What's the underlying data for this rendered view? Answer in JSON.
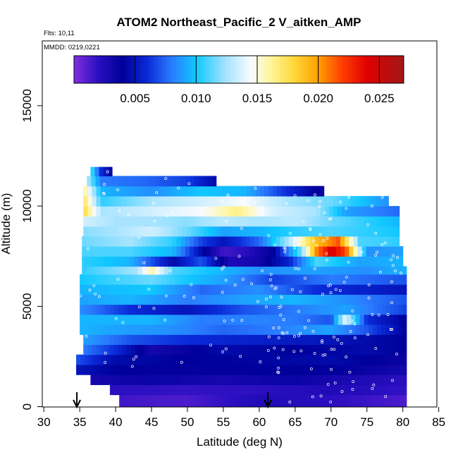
{
  "chart_data": {
    "type": "heatmap",
    "title": "ATOM2 Northeast_Pacific_2 V_aitken_AMP",
    "notes": [
      "Flts: 10,11",
      "MMDD: 0219,0221"
    ],
    "xlabel": "Latitude (deg N)",
    "ylabel": "Altitude (m)",
    "xlim": [
      30,
      85
    ],
    "ylim": [
      0,
      18000
    ],
    "x_ticks": [
      30,
      35,
      40,
      45,
      50,
      55,
      60,
      65,
      70,
      75,
      80,
      85
    ],
    "y_ticks": [
      0,
      5000,
      10000,
      15000
    ],
    "colorbar": {
      "range": [
        0,
        0.027
      ],
      "ticks": [
        0.005,
        0.01,
        0.015,
        0.02,
        0.025
      ],
      "tick_labels": [
        "0.005",
        "0.010",
        "0.015",
        "0.020",
        "0.025"
      ],
      "stops": [
        {
          "v": 0.0,
          "c": "#7f2fe0"
        },
        {
          "v": 0.002,
          "c": "#2a0fc0"
        },
        {
          "v": 0.004,
          "c": "#00009a"
        },
        {
          "v": 0.006,
          "c": "#0a2ad8"
        },
        {
          "v": 0.008,
          "c": "#2a7cff"
        },
        {
          "v": 0.01,
          "c": "#10c8ff"
        },
        {
          "v": 0.0125,
          "c": "#a9e4ff"
        },
        {
          "v": 0.0145,
          "c": "#f8fbff"
        },
        {
          "v": 0.016,
          "c": "#fff6a0"
        },
        {
          "v": 0.018,
          "c": "#ffd83a"
        },
        {
          "v": 0.02,
          "c": "#ffa000"
        },
        {
          "v": 0.022,
          "c": "#ff3c00"
        },
        {
          "v": 0.024,
          "c": "#e00000"
        },
        {
          "v": 0.027,
          "c": "#a01818"
        }
      ]
    },
    "altitude_bands": [
      {
        "alt": [
          0,
          600
        ],
        "lat": [
          40.5,
          80.5
        ],
        "profile": [
          [
            40.5,
            0.0015
          ],
          [
            50,
            0.0012
          ],
          [
            60,
            0.0025
          ],
          [
            70,
            0.002
          ],
          [
            80.5,
            0.0012
          ]
        ]
      },
      {
        "alt": [
          600,
          1100
        ],
        "lat": [
          39.2,
          80.5
        ],
        "profile": [
          [
            39.2,
            0.002
          ],
          [
            50,
            0.0018
          ],
          [
            60,
            0.002
          ],
          [
            70,
            0.0025
          ],
          [
            80.5,
            0.0018
          ]
        ]
      },
      {
        "alt": [
          1100,
          1600
        ],
        "lat": [
          36.5,
          80.5
        ],
        "profile": [
          [
            36.5,
            0.003
          ],
          [
            45,
            0.0035
          ],
          [
            55,
            0.003
          ],
          [
            65,
            0.0035
          ],
          [
            80.5,
            0.002
          ]
        ]
      },
      {
        "alt": [
          1600,
          2100
        ],
        "lat": [
          34.5,
          80.5
        ],
        "profile": [
          [
            34.5,
            0.005
          ],
          [
            40,
            0.004
          ],
          [
            50,
            0.0038
          ],
          [
            60,
            0.004
          ],
          [
            70,
            0.004
          ],
          [
            80.5,
            0.003
          ]
        ]
      },
      {
        "alt": [
          2100,
          2600
        ],
        "lat": [
          34.5,
          80.5
        ],
        "profile": [
          [
            34.5,
            0.007
          ],
          [
            40,
            0.0045
          ],
          [
            50,
            0.004
          ],
          [
            60,
            0.0042
          ],
          [
            70,
            0.0045
          ],
          [
            80.5,
            0.0035
          ]
        ]
      },
      {
        "alt": [
          2600,
          3100
        ],
        "lat": [
          35.5,
          80.5
        ],
        "profile": [
          [
            35.5,
            0.008
          ],
          [
            40,
            0.006
          ],
          [
            45,
            0.003
          ],
          [
            55,
            0.0045
          ],
          [
            65,
            0.004
          ],
          [
            75,
            0.0045
          ],
          [
            80.5,
            0.004
          ]
        ]
      },
      {
        "alt": [
          3100,
          3600
        ],
        "lat": [
          35.5,
          80.5
        ],
        "profile": [
          [
            35.5,
            0.009
          ],
          [
            42,
            0.007
          ],
          [
            50,
            0.006
          ],
          [
            60,
            0.0055
          ],
          [
            70,
            0.005
          ],
          [
            80.5,
            0.004
          ]
        ]
      },
      {
        "alt": [
          3600,
          4100
        ],
        "lat": [
          35.0,
          80.5
        ],
        "profile": [
          [
            35,
            0.0095
          ],
          [
            40,
            0.009
          ],
          [
            48,
            0.0085
          ],
          [
            55,
            0.0075
          ],
          [
            62,
            0.008
          ],
          [
            70,
            0.009
          ],
          [
            75,
            0.007
          ],
          [
            80.5,
            0.004
          ]
        ]
      },
      {
        "alt": [
          4100,
          4600
        ],
        "lat": [
          35.0,
          80.5
        ],
        "profile": [
          [
            35,
            0.0095
          ],
          [
            45,
            0.0095
          ],
          [
            52,
            0.008
          ],
          [
            60,
            0.0082
          ],
          [
            65,
            0.008
          ],
          [
            70,
            0.007
          ],
          [
            72,
            0.014
          ],
          [
            75,
            0.006
          ],
          [
            80.5,
            0.004
          ]
        ]
      },
      {
        "alt": [
          4600,
          5100
        ],
        "lat": [
          35.0,
          80.5
        ],
        "profile": [
          [
            35,
            0.0085
          ],
          [
            42,
            0.006
          ],
          [
            50,
            0.005
          ],
          [
            58,
            0.007
          ],
          [
            65,
            0.008
          ],
          [
            72,
            0.009
          ],
          [
            80.5,
            0.0065
          ]
        ]
      },
      {
        "alt": [
          5100,
          5600
        ],
        "lat": [
          35.0,
          80.5
        ],
        "profile": [
          [
            35,
            0.009
          ],
          [
            42,
            0.0095
          ],
          [
            50,
            0.008
          ],
          [
            58,
            0.009
          ],
          [
            65,
            0.0095
          ],
          [
            72,
            0.0085
          ],
          [
            80.5,
            0.007
          ]
        ]
      },
      {
        "alt": [
          5600,
          6100
        ],
        "lat": [
          35.0,
          80.5
        ],
        "profile": [
          [
            35,
            0.0095
          ],
          [
            45,
            0.01
          ],
          [
            52,
            0.0075
          ],
          [
            60,
            0.0085
          ],
          [
            68,
            0.006
          ],
          [
            75,
            0.0055
          ],
          [
            80.5,
            0.005
          ]
        ]
      },
      {
        "alt": [
          6100,
          6600
        ],
        "lat": [
          35.0,
          80.5
        ],
        "profile": [
          [
            35,
            0.01
          ],
          [
            45,
            0.0115
          ],
          [
            50,
            0.01
          ],
          [
            55,
            0.009
          ],
          [
            62,
            0.0065
          ],
          [
            70,
            0.008
          ],
          [
            80.5,
            0.007
          ]
        ]
      },
      {
        "alt": [
          6600,
          7000
        ],
        "lat": [
          35.3,
          80.5
        ],
        "profile": [
          [
            35.3,
            0.0105
          ],
          [
            43,
            0.0125
          ],
          [
            45,
            0.016
          ],
          [
            48,
            0.011
          ],
          [
            55,
            0.0095
          ],
          [
            60,
            0.0085
          ],
          [
            68,
            0.009
          ],
          [
            75,
            0.0085
          ],
          [
            80.5,
            0.0095
          ]
        ]
      },
      {
        "alt": [
          7000,
          7500
        ],
        "lat": [
          35.3,
          80.0
        ],
        "profile": [
          [
            35.3,
            0.0105
          ],
          [
            42,
            0.0095
          ],
          [
            48,
            0.0045
          ],
          [
            52,
            0.007
          ],
          [
            56,
            0.0025
          ],
          [
            60,
            0.0032
          ],
          [
            64,
            0.0055
          ],
          [
            68,
            0.011
          ],
          [
            74,
            0.009
          ],
          [
            80,
            0.0095
          ]
        ]
      },
      {
        "alt": [
          7500,
          8000
        ],
        "lat": [
          35.3,
          80.0
        ],
        "profile": [
          [
            35.3,
            0.011
          ],
          [
            42,
            0.011
          ],
          [
            48,
            0.0095
          ],
          [
            52,
            0.0045
          ],
          [
            55,
            0.0015
          ],
          [
            58,
            0.002
          ],
          [
            62,
            0.004
          ],
          [
            66,
            0.012
          ],
          [
            68,
            0.0205
          ],
          [
            70,
            0.0245
          ],
          [
            72,
            0.022
          ],
          [
            75,
            0.0085
          ],
          [
            80,
            0.009
          ]
        ]
      },
      {
        "alt": [
          8000,
          8500
        ],
        "lat": [
          35.3,
          79.5
        ],
        "profile": [
          [
            35.3,
            0.0115
          ],
          [
            42,
            0.0125
          ],
          [
            48,
            0.0105
          ],
          [
            52,
            0.0065
          ],
          [
            55,
            0.005
          ],
          [
            60,
            0.0075
          ],
          [
            64,
            0.0125
          ],
          [
            68,
            0.019
          ],
          [
            71,
            0.0215
          ],
          [
            74,
            0.011
          ],
          [
            79.5,
            0.0105
          ]
        ]
      },
      {
        "alt": [
          8500,
          9000
        ],
        "lat": [
          35.5,
          79.5
        ],
        "profile": [
          [
            35.5,
            0.012
          ],
          [
            40,
            0.0125
          ],
          [
            45,
            0.0135
          ],
          [
            50,
            0.0115
          ],
          [
            55,
            0.009
          ],
          [
            60,
            0.0095
          ],
          [
            65,
            0.0105
          ],
          [
            70,
            0.011
          ],
          [
            79.5,
            0.01
          ]
        ]
      },
      {
        "alt": [
          9000,
          9500
        ],
        "lat": [
          35.5,
          79.5
        ],
        "profile": [
          [
            35.5,
            0.0135
          ],
          [
            40,
            0.0125
          ],
          [
            45,
            0.0125
          ],
          [
            50,
            0.012
          ],
          [
            55,
            0.013
          ],
          [
            60,
            0.0125
          ],
          [
            65,
            0.013
          ],
          [
            70,
            0.0115
          ],
          [
            79.5,
            0.0095
          ]
        ]
      },
      {
        "alt": [
          9500,
          10000
        ],
        "lat": [
          35.5,
          79.5
        ],
        "profile": [
          [
            35.5,
            0.018
          ],
          [
            38,
            0.0125
          ],
          [
            45,
            0.0135
          ],
          [
            52,
            0.0145
          ],
          [
            57,
            0.0165
          ],
          [
            62,
            0.0135
          ],
          [
            68,
            0.0125
          ],
          [
            72,
            0.009
          ],
          [
            79.5,
            0.0075
          ]
        ]
      },
      {
        "alt": [
          10000,
          10500
        ],
        "lat": [
          35.5,
          78.0
        ],
        "profile": [
          [
            35.5,
            0.0175
          ],
          [
            38,
            0.0105
          ],
          [
            45,
            0.0125
          ],
          [
            52,
            0.0135
          ],
          [
            58,
            0.0145
          ],
          [
            64,
            0.0125
          ],
          [
            70,
            0.0115
          ],
          [
            78,
            0.0085
          ]
        ]
      },
      {
        "alt": [
          10500,
          11000
        ],
        "lat": [
          35.5,
          69.0
        ],
        "profile": [
          [
            35.5,
            0.0165
          ],
          [
            38,
            0.0095
          ],
          [
            45,
            0.0085
          ],
          [
            52,
            0.01
          ],
          [
            58,
            0.0095
          ],
          [
            63,
            0.0065
          ],
          [
            69,
            0.0035
          ]
        ]
      },
      {
        "alt": [
          11000,
          11500
        ],
        "lat": [
          36.0,
          54.0
        ],
        "profile": [
          [
            36,
            0.013
          ],
          [
            38,
            0.008
          ],
          [
            44,
            0.0075
          ],
          [
            50,
            0.0065
          ],
          [
            54,
            0.0045
          ]
        ]
      },
      {
        "alt": [
          11500,
          11950
        ],
        "lat": [
          36.5,
          39.5
        ],
        "profile": [
          [
            36.5,
            0.0115
          ],
          [
            38,
            0.006
          ],
          [
            39.5,
            0.004
          ]
        ]
      }
    ],
    "sample_points_count": 220,
    "flight_segments": [
      {
        "lat_start": 34.8,
        "lat_end": 80.5,
        "alt_start": 2000,
        "alt_end": 11800
      },
      {
        "lat_start": 61.0,
        "lat_end": 80.5,
        "alt_start": 200,
        "alt_end": 10800
      }
    ],
    "arrows": [
      {
        "lat": 34.6,
        "direction": "down"
      },
      {
        "lat": 61.2,
        "direction": "down"
      }
    ]
  }
}
